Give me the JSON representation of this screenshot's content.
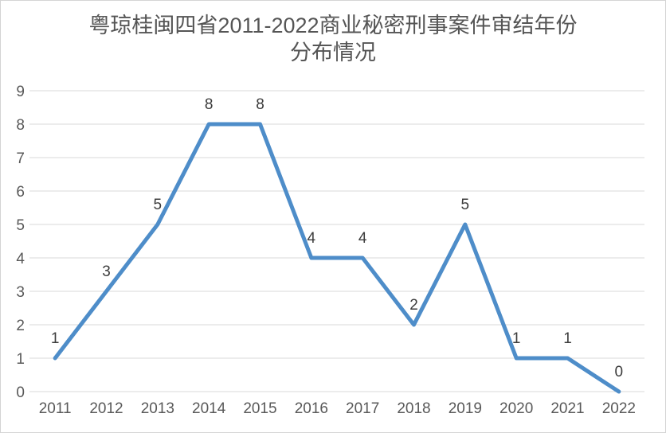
{
  "page": {
    "background_color": "#FFFFFF",
    "border_color": "#D4D4D4"
  },
  "chart_data": {
    "type": "line",
    "title": "粤琼桂闽四省2011-2022商业秘密刑事案件审结年份分布情况",
    "title_line1": "粤琼桂闽四省2011-2022商业秘密刑事案件审结年份",
    "title_line2": "分布情况",
    "xlabel": "",
    "ylabel": "",
    "categories": [
      "2011",
      "2012",
      "2013",
      "2014",
      "2015",
      "2016",
      "2017",
      "2018",
      "2019",
      "2020",
      "2021",
      "2022"
    ],
    "values": [
      1,
      3,
      5,
      8,
      8,
      4,
      4,
      2,
      5,
      1,
      1,
      0
    ],
    "ylim": [
      0,
      9
    ],
    "y_ticks": [
      0,
      1,
      2,
      3,
      4,
      5,
      6,
      7,
      8,
      9
    ],
    "grid": true,
    "legend": "none",
    "data_labels": true,
    "line_color": "#4E8DC9",
    "line_width": 5,
    "gridline_color": "#D9D9D9",
    "axis_label_color": "#595959",
    "data_label_color": "#3C3C3C",
    "title_color": "#555555"
  }
}
